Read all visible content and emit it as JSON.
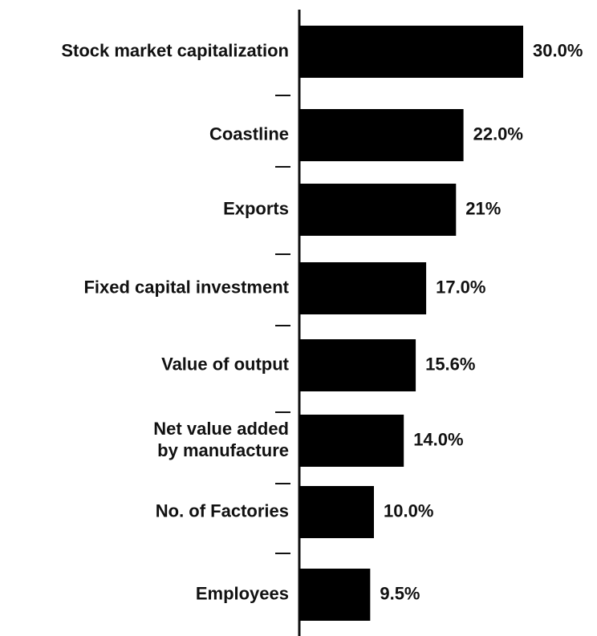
{
  "chart_data": {
    "type": "bar",
    "orientation": "horizontal",
    "categories": [
      "Stock market capitalization",
      "Coastline",
      "Exports",
      "Fixed capital investment",
      "Value of output",
      "Net value added by manufacture",
      "No. of Factories",
      "Employees"
    ],
    "category_label_lines": [
      [
        "Stock market capitalization"
      ],
      [
        "Coastline"
      ],
      [
        "Exports"
      ],
      [
        "Fixed capital investment"
      ],
      [
        "Value of output"
      ],
      [
        "Net value added",
        "by manufacture"
      ],
      [
        "No. of Factories"
      ],
      [
        "Employees"
      ]
    ],
    "values": [
      30.0,
      22.0,
      21,
      17.0,
      15.6,
      14.0,
      10.0,
      9.5
    ],
    "value_labels": [
      "30.0%",
      "22.0%",
      "21%",
      "17.0%",
      "15.6%",
      "14.0%",
      "10.0%",
      "9.5%"
    ],
    "title": "",
    "xlabel": "",
    "ylabel": "",
    "bar_color": "#000000",
    "axis_color": "#111111",
    "grid": false,
    "legend": "none"
  }
}
